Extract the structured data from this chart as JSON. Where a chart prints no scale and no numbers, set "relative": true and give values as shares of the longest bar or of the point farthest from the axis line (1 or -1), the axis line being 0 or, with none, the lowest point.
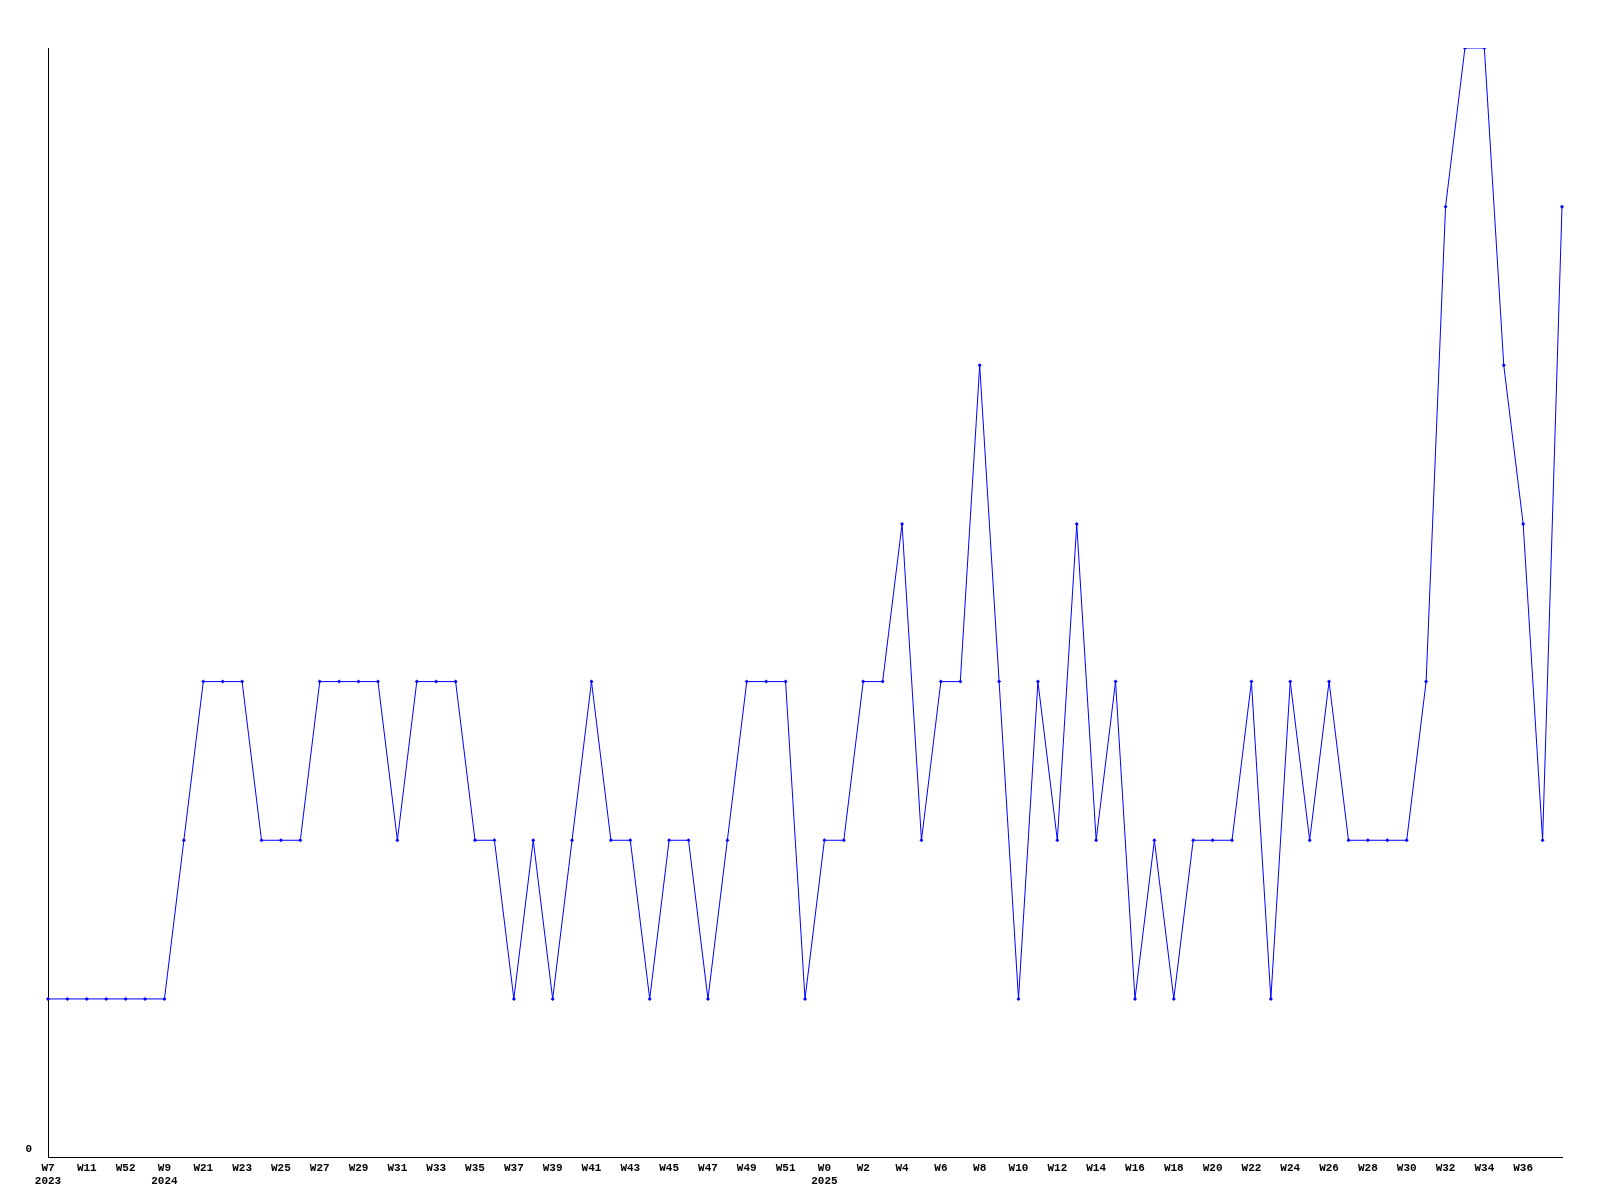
{
  "chart_data": {
    "type": "line",
    "relative": true,
    "color": "#0000ff",
    "marker": "diamond",
    "grid": false,
    "legend": false,
    "annotations": [
      "0"
    ],
    "categories": [
      "W7\n2023",
      null,
      "W11",
      null,
      "W52",
      null,
      "W9\n2024",
      null,
      "W21",
      null,
      "W23",
      null,
      "W25",
      null,
      "W27",
      null,
      "W29",
      null,
      "W31",
      null,
      "W33",
      null,
      "W35",
      null,
      "W37",
      null,
      "W39",
      null,
      "W41",
      null,
      "W43",
      null,
      "W45",
      null,
      "W47",
      null,
      "W49",
      null,
      "W51",
      null,
      "W0\n2025",
      null,
      "W2",
      null,
      "W4",
      null,
      "W6",
      null,
      "W8",
      null,
      "W10",
      null,
      "W12",
      null,
      "W14",
      null,
      "W16",
      null,
      "W18",
      null,
      "W20",
      null,
      "W22",
      null,
      "W24",
      null,
      "W26",
      null,
      "W28",
      null,
      "W30",
      null,
      "W32",
      null,
      "W34",
      null,
      "W36",
      null,
      null
    ],
    "values": [
      0.143,
      0.143,
      0.143,
      0.143,
      0.143,
      0.143,
      0.143,
      0.286,
      0.429,
      0.429,
      0.429,
      0.286,
      0.286,
      0.286,
      0.429,
      0.429,
      0.429,
      0.429,
      0.286,
      0.429,
      0.429,
      0.429,
      0.286,
      0.286,
      0.143,
      0.286,
      0.143,
      0.286,
      0.429,
      0.286,
      0.286,
      0.143,
      0.286,
      0.286,
      0.143,
      0.286,
      0.429,
      0.429,
      0.429,
      0.143,
      0.286,
      0.286,
      0.429,
      0.429,
      0.571,
      0.286,
      0.429,
      0.429,
      0.714,
      0.429,
      0.143,
      0.429,
      0.286,
      0.571,
      0.286,
      0.429,
      0.143,
      0.286,
      0.143,
      0.286,
      0.286,
      0.286,
      0.429,
      0.143,
      0.429,
      0.286,
      0.429,
      0.286,
      0.286,
      0.286,
      0.286,
      0.429,
      0.857,
      1,
      1,
      0.714,
      0.571,
      0.286,
      0.857
    ]
  }
}
